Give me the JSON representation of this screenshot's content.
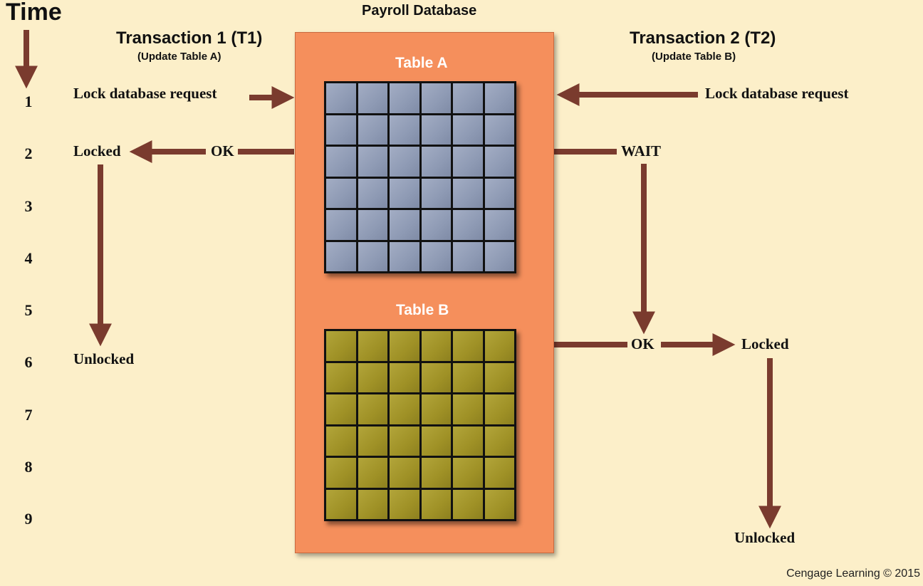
{
  "time_axis": {
    "title": "Time",
    "ticks": [
      "1",
      "2",
      "3",
      "4",
      "5",
      "6",
      "7",
      "8",
      "9"
    ]
  },
  "database": {
    "title": "Payroll Database",
    "table_a": "Table A",
    "table_b": "Table B"
  },
  "transaction_1": {
    "title": "Transaction 1 (T1)",
    "subtitle": "(Update Table A)",
    "request": "Lock database request",
    "response": "OK",
    "locked": "Locked",
    "unlocked": "Unlocked"
  },
  "transaction_2": {
    "title": "Transaction 2 (T2)",
    "subtitle": "(Update Table B)",
    "request": "Lock database request",
    "wait": "WAIT",
    "response": "OK",
    "locked": "Locked",
    "unlocked": "Unlocked"
  },
  "credit": "Cengage Learning © 2015",
  "colors": {
    "background": "#fcefc9",
    "database": "#f58f5c",
    "table_a": "#8e9ab4",
    "table_b": "#9f9126",
    "arrow": "#7a3b2e"
  }
}
